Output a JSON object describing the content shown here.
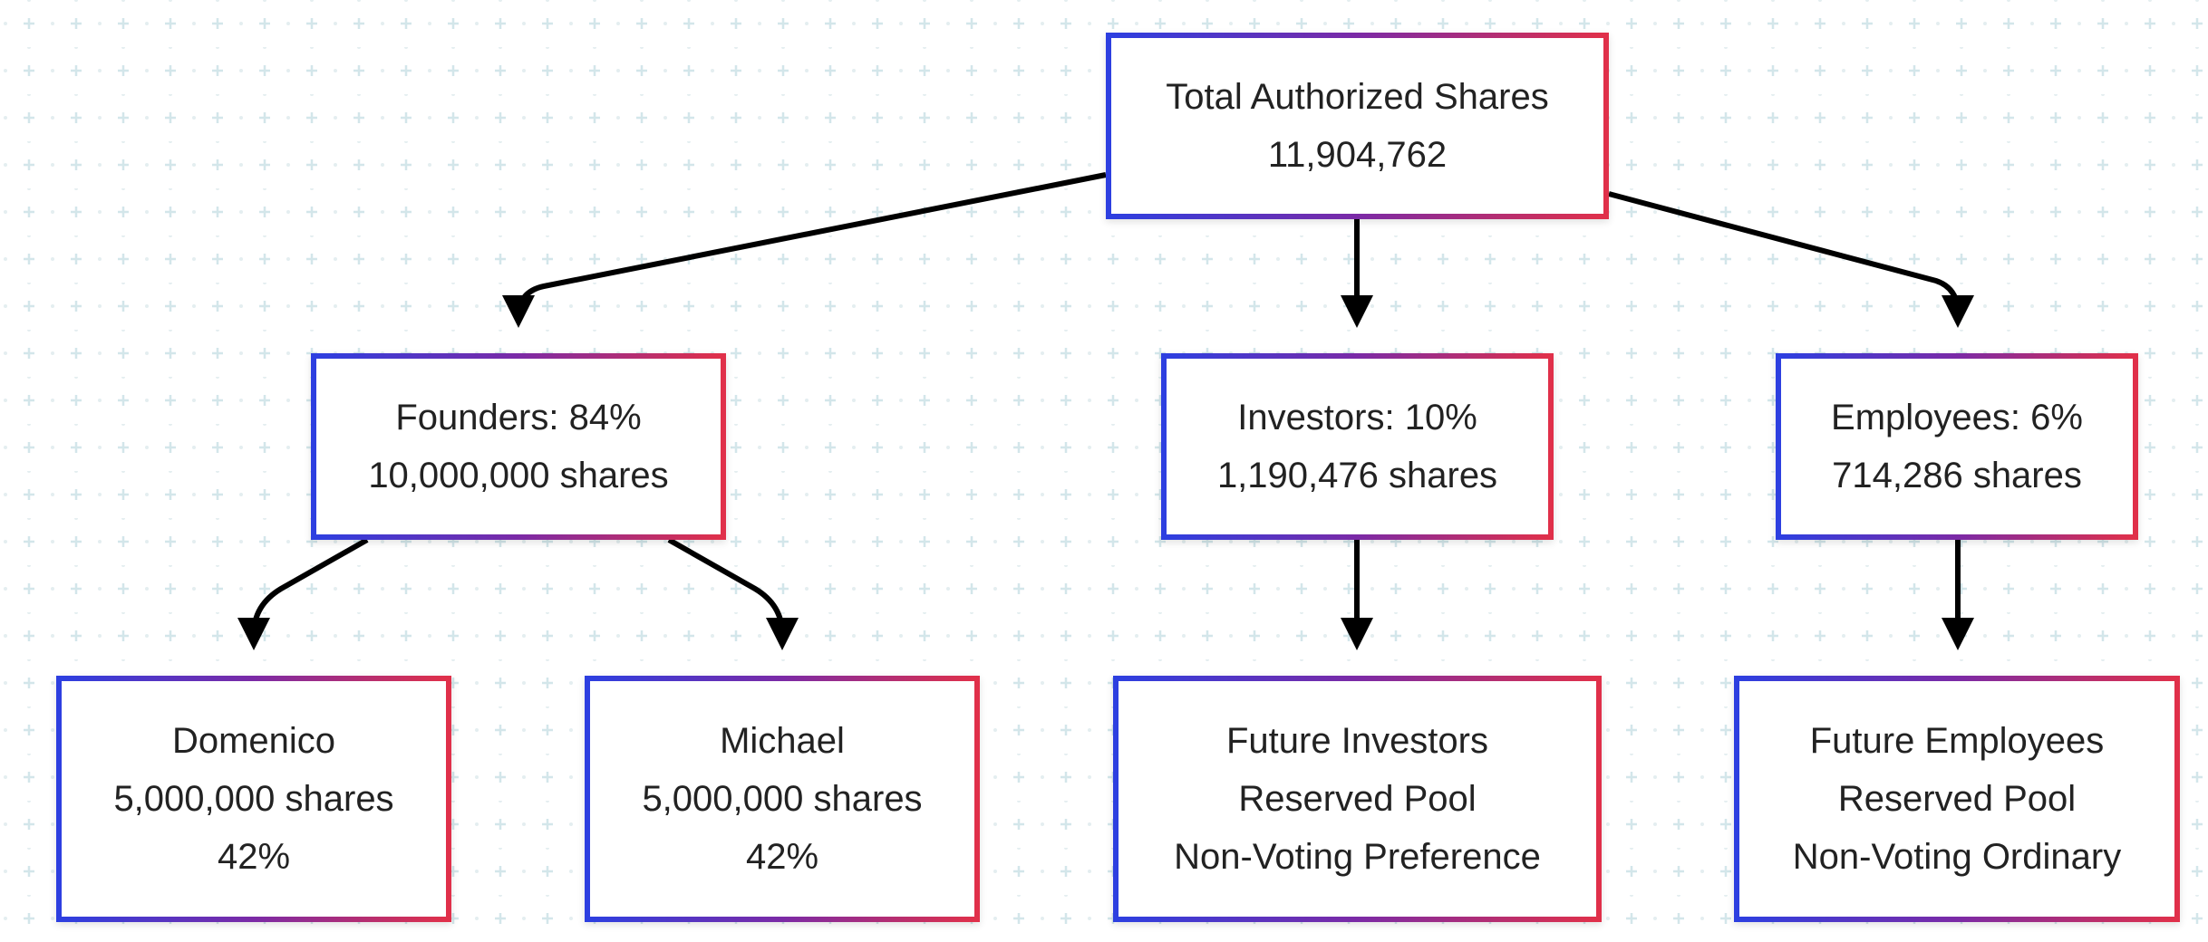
{
  "diagram": {
    "colors": {
      "border_start": "#2d3fe0",
      "border_end": "#e0304a",
      "edge": "#000000",
      "grid": "#d3e6ea"
    },
    "nodes": {
      "total": {
        "lines": [
          "Total Authorized Shares",
          "11,904,762"
        ]
      },
      "founders": {
        "lines": [
          "Founders: 84%",
          "10,000,000 shares"
        ]
      },
      "investors": {
        "lines": [
          "Investors: 10%",
          "1,190,476 shares"
        ]
      },
      "employees": {
        "lines": [
          "Employees: 6%",
          "714,286 shares"
        ]
      },
      "domenico": {
        "lines": [
          "Domenico",
          "5,000,000 shares",
          "42%"
        ]
      },
      "michael": {
        "lines": [
          "Michael",
          "5,000,000 shares",
          "42%"
        ]
      },
      "future_investors": {
        "lines": [
          "Future Investors",
          "Reserved Pool",
          "Non-Voting Preference"
        ]
      },
      "future_employees": {
        "lines": [
          "Future Employees",
          "Reserved Pool",
          "Non-Voting Ordinary"
        ]
      }
    },
    "edges": [
      {
        "from": "total",
        "to": "founders"
      },
      {
        "from": "total",
        "to": "investors"
      },
      {
        "from": "total",
        "to": "employees"
      },
      {
        "from": "founders",
        "to": "domenico"
      },
      {
        "from": "founders",
        "to": "michael"
      },
      {
        "from": "investors",
        "to": "future_investors"
      },
      {
        "from": "employees",
        "to": "future_employees"
      }
    ]
  }
}
